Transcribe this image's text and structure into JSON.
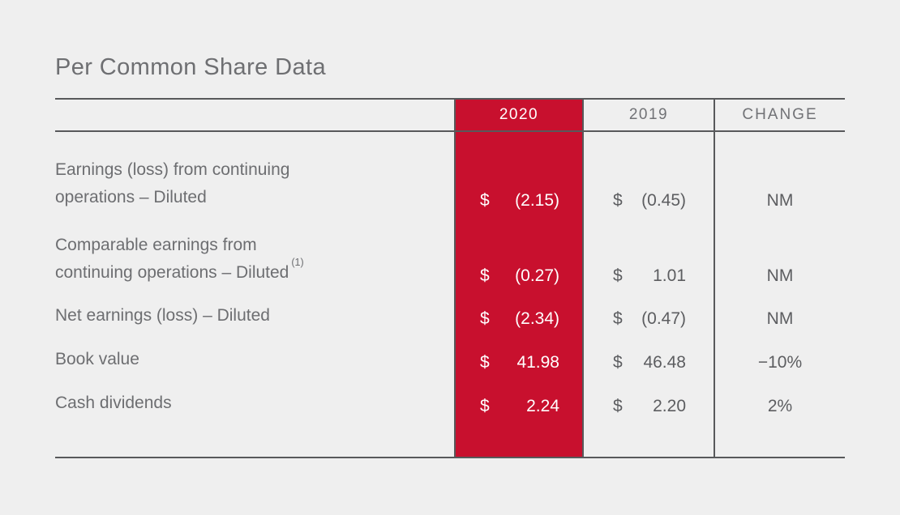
{
  "title": "Per Common Share Data",
  "colors": {
    "background": "#efefef",
    "accent_red": "#c8102e",
    "rule_gray": "#58595b",
    "label_gray": "#6d6e71",
    "value_gray": "#5c5d60",
    "highlight_text": "#ffffff"
  },
  "table": {
    "columns": [
      {
        "key": "label",
        "header": ""
      },
      {
        "key": "y2020",
        "header": "2020",
        "highlighted": true
      },
      {
        "key": "y2019",
        "header": "2019"
      },
      {
        "key": "change",
        "header": "CHANGE"
      }
    ],
    "rows": [
      {
        "label": "Earnings (loss) from continuing\noperations – Diluted",
        "sup": "",
        "y2020": {
          "cur": "$",
          "val": "(2.15)"
        },
        "y2019": {
          "cur": "$",
          "val": "(0.45)"
        },
        "change": "NM"
      },
      {
        "label": "Comparable earnings from\ncontinuing operations – Diluted",
        "sup": "(1)",
        "y2020": {
          "cur": "$",
          "val": "(0.27)"
        },
        "y2019": {
          "cur": "$",
          "val": "1.01"
        },
        "change": "NM"
      },
      {
        "label": "Net earnings (loss) – Diluted",
        "sup": "",
        "y2020": {
          "cur": "$",
          "val": "(2.34)"
        },
        "y2019": {
          "cur": "$",
          "val": "(0.47)"
        },
        "change": "NM"
      },
      {
        "label": "Book value",
        "sup": "",
        "y2020": {
          "cur": "$",
          "val": "41.98"
        },
        "y2019": {
          "cur": "$",
          "val": "46.48"
        },
        "change": "−10%"
      },
      {
        "label": "Cash dividends",
        "sup": "",
        "y2020": {
          "cur": "$",
          "val": "2.24"
        },
        "y2019": {
          "cur": "$",
          "val": "2.20"
        },
        "change": "2%"
      }
    ]
  },
  "chart_data": {
    "type": "table",
    "title": "Per Common Share Data",
    "columns": [
      "",
      "2020",
      "2019",
      "CHANGE"
    ],
    "rows": [
      [
        "Earnings (loss) from continuing operations – Diluted",
        "$ (2.15)",
        "$ (0.45)",
        "NM"
      ],
      [
        "Comparable earnings from continuing operations – Diluted (1)",
        "$ (0.27)",
        "$ 1.01",
        "NM"
      ],
      [
        "Net earnings (loss) – Diluted",
        "$ (2.34)",
        "$ (0.47)",
        "NM"
      ],
      [
        "Book value",
        "$ 41.98",
        "$ 46.48",
        "−10%"
      ],
      [
        "Cash dividends",
        "$ 2.24",
        "$ 2.20",
        "2%"
      ]
    ],
    "layout_hints": {
      "highlighted_column": "2020",
      "highlight_color": "#c8102e",
      "money_columns": [
        "2020",
        "2019"
      ]
    }
  }
}
